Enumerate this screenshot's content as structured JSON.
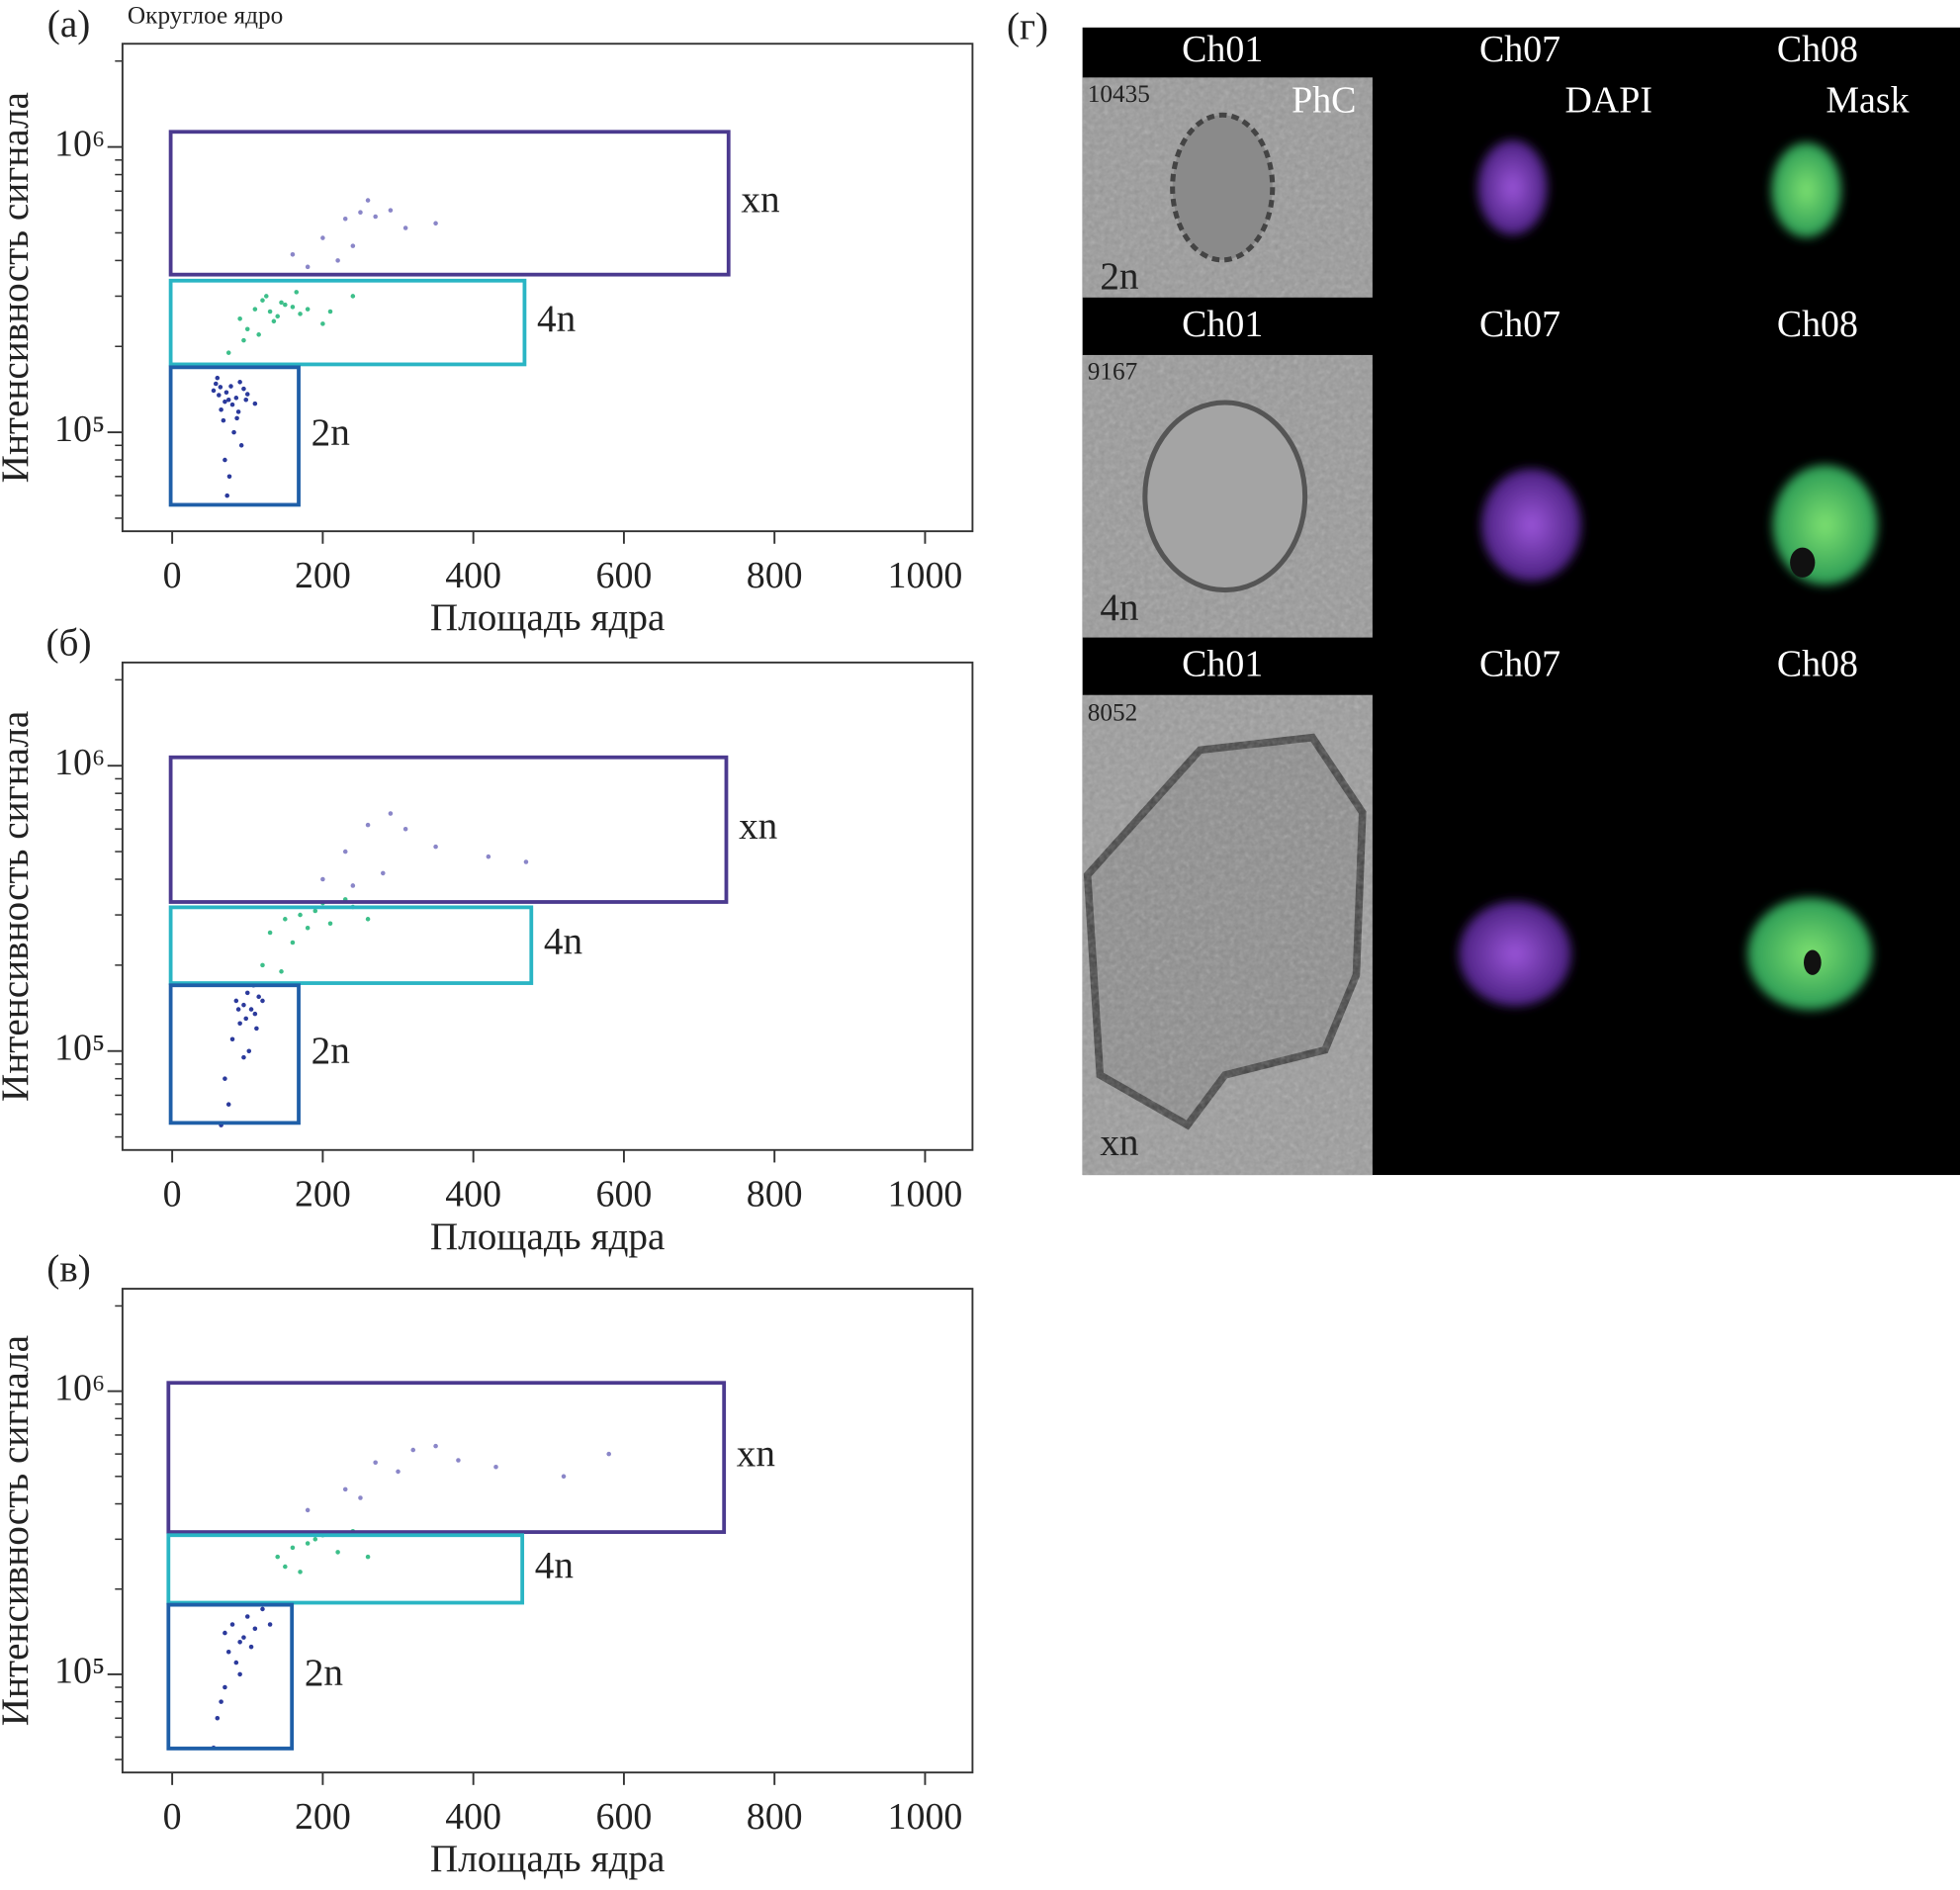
{
  "chart_data": [
    {
      "type": "scatter",
      "panel_label": "(а)",
      "title": "Округлое ядро",
      "xlabel": "Площадь ядра",
      "ylabel": "Интенсивность сигнала",
      "xlim": [
        -66,
        1063
      ],
      "xticks": [
        0,
        200,
        400,
        600,
        800,
        1000
      ],
      "y_scale": "log",
      "ylim": [
        45000,
        2300000
      ],
      "yticks": [
        {
          "value": 100000,
          "label": "10⁵"
        },
        {
          "value": 1000000,
          "label": "10⁶"
        }
      ],
      "yminor_ticks": [
        50000,
        60000,
        70000,
        80000,
        90000,
        200000,
        300000,
        400000,
        500000,
        600000,
        700000,
        800000,
        900000,
        2000000
      ],
      "gates": [
        {
          "label": "xn",
          "color": "#4b3a8f",
          "x": [
            -2,
            739
          ],
          "y": [
            357000,
            1130000
          ]
        },
        {
          "label": "4n",
          "color": "#2ab5c4",
          "x": [
            -2,
            468
          ],
          "y": [
            173000,
            340000
          ]
        },
        {
          "label": "2n",
          "color": "#1f5fa8",
          "x": [
            -2,
            168
          ],
          "y": [
            55700,
            169000
          ]
        }
      ],
      "series": [
        {
          "color": "#2b3a9c",
          "x": [
            55,
            62,
            70,
            78,
            85,
            90,
            65,
            72,
            80,
            95,
            58,
            68,
            75,
            88,
            100,
            60,
            82,
            92,
            70,
            76,
            110,
            64,
            86,
            98,
            73
          ],
          "y": [
            140000,
            135000,
            128000,
            145000,
            132000,
            150000,
            120000,
            138000,
            125000,
            142000,
            148000,
            110000,
            130000,
            118000,
            136000,
            155000,
            100000,
            90000,
            80000,
            70000,
            126000,
            144000,
            112000,
            130000,
            60000
          ]
        },
        {
          "color": "#3dbf8a",
          "x": [
            90,
            110,
            130,
            150,
            170,
            120,
            140,
            100,
            160,
            180,
            200,
            125,
            145,
            135,
            115,
            210,
            75,
            95,
            165,
            240
          ],
          "y": [
            250000,
            270000,
            265000,
            280000,
            260000,
            290000,
            255000,
            230000,
            275000,
            270000,
            240000,
            300000,
            285000,
            245000,
            220000,
            265000,
            190000,
            210000,
            310000,
            300000
          ]
        },
        {
          "color": "#8a86c8",
          "x": [
            160,
            200,
            230,
            250,
            270,
            290,
            310,
            220,
            260,
            350,
            180,
            240
          ],
          "y": [
            420000,
            480000,
            560000,
            590000,
            570000,
            600000,
            520000,
            400000,
            650000,
            540000,
            380000,
            450000
          ]
        }
      ]
    },
    {
      "type": "scatter",
      "panel_label": "(б)",
      "xlabel": "Площадь ядра",
      "ylabel": "Интенсивность сигнала",
      "xlim": [
        -66,
        1063
      ],
      "xticks": [
        0,
        200,
        400,
        600,
        800,
        1000
      ],
      "y_scale": "log",
      "ylim": [
        45000,
        2300000
      ],
      "yticks": [
        {
          "value": 100000,
          "label": "10⁵"
        },
        {
          "value": 1000000,
          "label": "10⁶"
        }
      ],
      "yminor_ticks": [
        50000,
        60000,
        70000,
        80000,
        90000,
        200000,
        300000,
        400000,
        500000,
        600000,
        700000,
        800000,
        900000,
        2000000
      ],
      "gates": [
        {
          "label": "xn",
          "color": "#4b3a8f",
          "x": [
            -2,
            736
          ],
          "y": [
            333000,
            1070000
          ]
        },
        {
          "label": "4n",
          "color": "#2ab5c4",
          "x": [
            -2,
            477
          ],
          "y": [
            173000,
            319000
          ]
        },
        {
          "label": "2n",
          "color": "#1f5fa8",
          "x": [
            -2,
            168
          ],
          "y": [
            56000,
            170000
          ]
        }
      ],
      "series": [
        {
          "color": "#2b3a9c",
          "x": [
            85,
            95,
            100,
            105,
            110,
            115,
            90,
            120,
            98,
            108,
            80,
            102,
            112,
            88,
            70,
            75,
            65,
            95
          ],
          "y": [
            150000,
            145000,
            160000,
            140000,
            135000,
            155000,
            125000,
            150000,
            130000,
            170000,
            110000,
            100000,
            120000,
            140000,
            80000,
            65000,
            55000,
            95000
          ]
        },
        {
          "color": "#3dbf8a",
          "x": [
            130,
            150,
            170,
            190,
            210,
            240,
            160,
            180,
            200,
            120,
            145,
            260,
            230
          ],
          "y": [
            260000,
            290000,
            300000,
            310000,
            280000,
            320000,
            240000,
            270000,
            330000,
            200000,
            190000,
            290000,
            340000
          ]
        },
        {
          "color": "#8a86c8",
          "x": [
            200,
            230,
            260,
            290,
            310,
            350,
            420,
            470,
            280,
            240
          ],
          "y": [
            400000,
            500000,
            620000,
            680000,
            600000,
            520000,
            480000,
            460000,
            420000,
            380000
          ]
        }
      ]
    },
    {
      "type": "scatter",
      "panel_label": "(в)",
      "xlabel": "Площадь ядра",
      "ylabel": "Интенсивность сигнала",
      "xlim": [
        -66,
        1063
      ],
      "xticks": [
        0,
        200,
        400,
        600,
        800,
        1000
      ],
      "y_scale": "log",
      "ylim": [
        45000,
        2300000
      ],
      "yticks": [
        {
          "value": 100000,
          "label": "10⁵"
        },
        {
          "value": 1000000,
          "label": "10⁶"
        }
      ],
      "yminor_ticks": [
        50000,
        60000,
        70000,
        80000,
        90000,
        200000,
        300000,
        400000,
        500000,
        600000,
        700000,
        800000,
        900000,
        2000000
      ],
      "gates": [
        {
          "label": "xn",
          "color": "#4b3a8f",
          "x": [
            -5,
            733
          ],
          "y": [
            318000,
            1070000
          ]
        },
        {
          "label": "4n",
          "color": "#2ab5c4",
          "x": [
            -5,
            465
          ],
          "y": [
            179000,
            310000
          ]
        },
        {
          "label": "2n",
          "color": "#1f5fa8",
          "x": [
            -5,
            159
          ],
          "y": [
            54700,
            176000
          ]
        }
      ],
      "series": [
        {
          "color": "#2b3a9c",
          "x": [
            70,
            80,
            90,
            100,
            110,
            75,
            85,
            95,
            105,
            120,
            60,
            65,
            55,
            70,
            90,
            130
          ],
          "y": [
            140000,
            150000,
            130000,
            160000,
            145000,
            120000,
            110000,
            135000,
            125000,
            170000,
            70000,
            80000,
            55000,
            90000,
            100000,
            150000
          ]
        },
        {
          "color": "#3dbf8a",
          "x": [
            140,
            160,
            180,
            200,
            220,
            150,
            170,
            190,
            240,
            260
          ],
          "y": [
            260000,
            280000,
            290000,
            310000,
            270000,
            240000,
            230000,
            300000,
            320000,
            260000
          ]
        },
        {
          "color": "#8a86c8",
          "x": [
            180,
            230,
            270,
            320,
            350,
            380,
            430,
            520,
            580,
            250,
            300
          ],
          "y": [
            380000,
            450000,
            560000,
            620000,
            640000,
            570000,
            540000,
            500000,
            600000,
            420000,
            520000
          ]
        }
      ]
    }
  ],
  "image_panel": {
    "label": "(г)",
    "rows": [
      {
        "headers": [
          "Ch01",
          "Ch07",
          "Ch08"
        ],
        "channel_names": [
          "PhC",
          "DAPI",
          "Mask"
        ],
        "id": "10435",
        "ploidy": "2n"
      },
      {
        "headers": [
          "Ch01",
          "Ch07",
          "Ch08"
        ],
        "id": "9167",
        "ploidy": "4n"
      },
      {
        "headers": [
          "Ch01",
          "Ch07",
          "Ch08"
        ],
        "id": "8052",
        "ploidy": "xn"
      }
    ]
  }
}
